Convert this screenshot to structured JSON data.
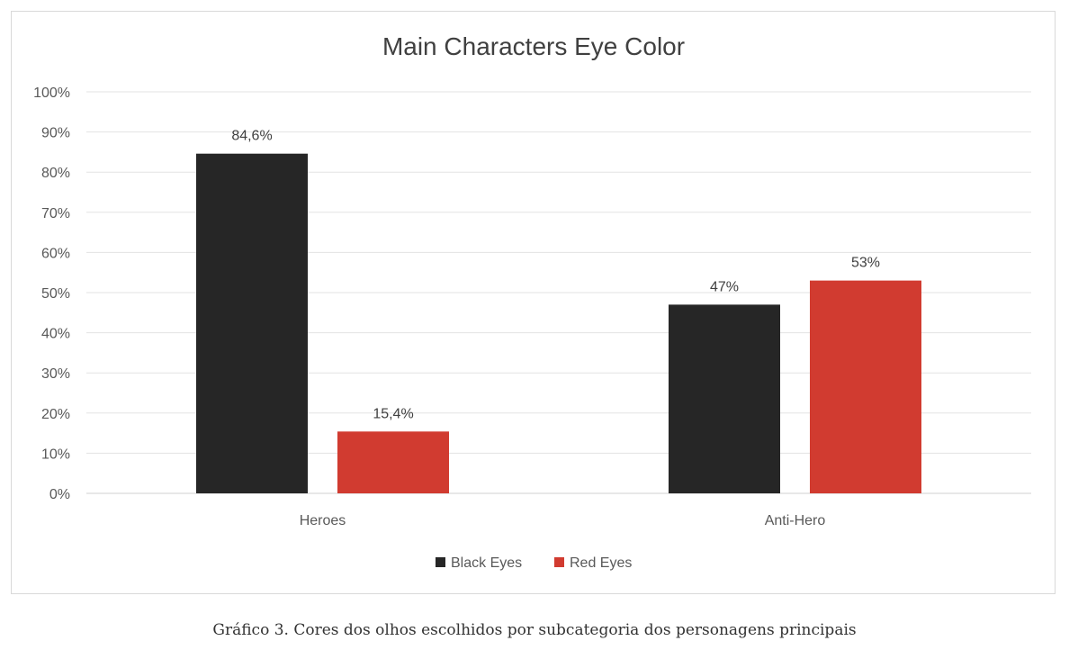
{
  "chart_data": {
    "type": "bar",
    "title": "Main Characters Eye Color",
    "categories": [
      "Heroes",
      "Anti-Hero"
    ],
    "series": [
      {
        "name": "Black Eyes",
        "color": "#262626",
        "values": [
          84.6,
          47
        ],
        "labels": [
          "84,6%",
          "47%"
        ]
      },
      {
        "name": "Red Eyes",
        "color": "#d13b30",
        "values": [
          15.4,
          53
        ],
        "labels": [
          "15,4%",
          "53%"
        ]
      }
    ],
    "ylim": [
      0,
      100
    ],
    "yticks": [
      0,
      10,
      20,
      30,
      40,
      50,
      60,
      70,
      80,
      90,
      100
    ],
    "ytick_labels": [
      "0%",
      "10%",
      "20%",
      "30%",
      "40%",
      "50%",
      "60%",
      "70%",
      "80%",
      "90%",
      "100%"
    ],
    "grid": true,
    "legend_position": "bottom"
  },
  "caption": "Gráfico 3. Cores dos olhos escolhidos por subcategoria dos personagens principais"
}
